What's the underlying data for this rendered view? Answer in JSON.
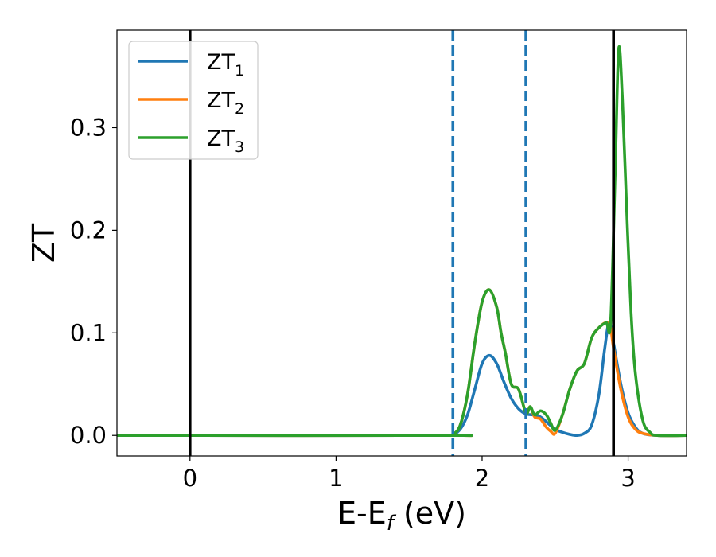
{
  "chart_data": {
    "type": "line",
    "xlabel": "E-E",
    "xlabel_sub": "f",
    "xlabel_unit": " (eV)",
    "ylabel": "ZT",
    "xlim": [
      -0.5,
      3.4
    ],
    "ylim": [
      -0.02,
      0.395
    ],
    "xticks": [
      0,
      1,
      2,
      3
    ],
    "xtick_labels": [
      "0",
      "1",
      "2",
      "3"
    ],
    "yticks": [
      0.0,
      0.1,
      0.2,
      0.3
    ],
    "ytick_labels": [
      "0.0",
      "0.1",
      "0.2",
      "0.3"
    ],
    "grid": false,
    "legend_position": "top-left",
    "vlines": [
      {
        "x": 0.0,
        "style": "solid",
        "color": "#000000"
      },
      {
        "x": 1.8,
        "style": "dashed",
        "color": "#1f77b4"
      },
      {
        "x": 2.3,
        "style": "dashed",
        "color": "#1f77b4"
      },
      {
        "x": 2.9,
        "style": "solid",
        "color": "#000000"
      }
    ],
    "series": [
      {
        "name": "ZT",
        "name_sub": "1",
        "color": "#1f77b4",
        "x": [
          -0.5,
          1.75,
          1.8,
          1.85,
          1.9,
          1.95,
          2.0,
          2.05,
          2.1,
          2.15,
          2.2,
          2.25,
          2.3,
          2.35,
          2.4,
          2.45,
          2.5,
          2.55,
          2.6,
          2.65,
          2.7,
          2.75,
          2.8,
          2.84,
          2.87,
          2.9,
          2.95,
          3.0,
          3.05,
          3.1,
          3.2,
          3.4
        ],
        "y": [
          0.0,
          0.0,
          0.001,
          0.006,
          0.02,
          0.045,
          0.07,
          0.078,
          0.07,
          0.052,
          0.036,
          0.026,
          0.021,
          0.02,
          0.018,
          0.012,
          0.006,
          0.003,
          0.001,
          0.0,
          0.002,
          0.01,
          0.04,
          0.085,
          0.11,
          0.09,
          0.05,
          0.022,
          0.008,
          0.002,
          0.0,
          0.0
        ]
      },
      {
        "name": "ZT",
        "name_sub": "2",
        "color": "#ff7f0e",
        "x": [
          -0.5,
          1.75,
          1.8,
          1.85,
          1.9,
          1.95,
          2.0,
          2.05,
          2.1,
          2.13,
          2.16,
          2.2,
          2.25,
          2.3,
          2.33,
          2.36,
          2.4,
          2.44,
          2.47,
          2.5,
          2.55,
          2.6,
          2.65,
          2.7,
          2.75,
          2.8,
          2.85,
          2.88,
          2.9,
          2.95,
          3.0,
          3.05,
          3.1,
          3.2,
          3.4
        ],
        "y": [
          0.0,
          0.0,
          0.001,
          0.01,
          0.04,
          0.09,
          0.13,
          0.142,
          0.125,
          0.1,
          0.08,
          0.05,
          0.045,
          0.022,
          0.028,
          0.018,
          0.016,
          0.008,
          0.004,
          0.002,
          0.02,
          0.045,
          0.063,
          0.07,
          0.095,
          0.105,
          0.11,
          0.105,
          0.085,
          0.045,
          0.018,
          0.006,
          0.002,
          0.0,
          0.0
        ]
      },
      {
        "name": "ZT",
        "name_sub": "3",
        "color": "#2ca02c",
        "x": [
          -0.5,
          1.75,
          1.8,
          1.85,
          1.9,
          1.95,
          2.0,
          2.05,
          2.1,
          2.13,
          2.16,
          2.2,
          2.25,
          2.3,
          2.33,
          2.36,
          2.4,
          2.44,
          2.47,
          2.5,
          2.55,
          2.6,
          2.65,
          2.7,
          2.75,
          2.8,
          2.85,
          2.88,
          2.91,
          2.935,
          2.96,
          2.99,
          3.02,
          3.05,
          3.1,
          3.15,
          3.2,
          3.4
        ],
        "y": [
          0.0,
          0.0,
          0.001,
          0.01,
          0.04,
          0.09,
          0.13,
          0.142,
          0.125,
          0.1,
          0.08,
          0.05,
          0.045,
          0.022,
          0.028,
          0.02,
          0.024,
          0.02,
          0.012,
          0.005,
          0.02,
          0.045,
          0.063,
          0.07,
          0.095,
          0.105,
          0.11,
          0.11,
          0.25,
          0.376,
          0.33,
          0.22,
          0.12,
          0.06,
          0.015,
          0.003,
          0.0,
          0.0
        ]
      }
    ]
  }
}
